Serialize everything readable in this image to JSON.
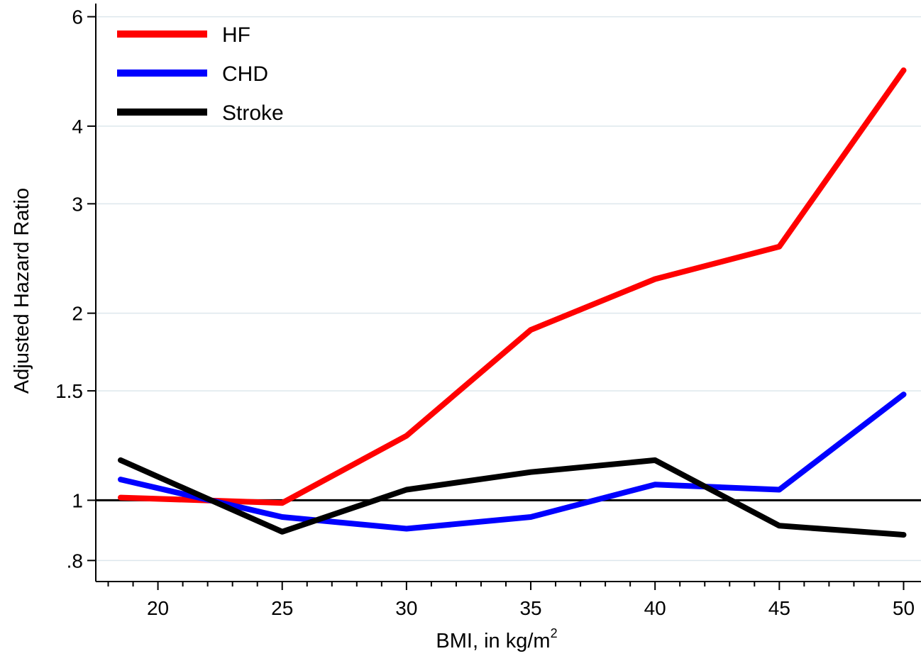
{
  "chart_data": {
    "type": "line",
    "title": "",
    "xlabel": "BMI, in kg/m",
    "xlabel_sup": "2",
    "ylabel": "Adjusted Hazard Ratio",
    "xlim": [
      17.5,
      50.7
    ],
    "ylim": [
      0.74,
      6.3
    ],
    "y_scale": "log",
    "grid": "horizontal",
    "legend_position": "top-left",
    "x_ticks": [
      20,
      25,
      30,
      35,
      40,
      45,
      50
    ],
    "x_tick_labels": [
      "20",
      "25",
      "30",
      "35",
      "40",
      "45",
      "50"
    ],
    "y_ticks": [
      0.8,
      1,
      1.5,
      2,
      3,
      4,
      6
    ],
    "y_tick_labels": [
      ".8",
      "1",
      "1.5",
      "2",
      "3",
      "4",
      "6"
    ],
    "reference_line": 1,
    "series": [
      {
        "name": "HF",
        "color": "#ff0000",
        "x": [
          18.5,
          25,
          30,
          35,
          40,
          45,
          50
        ],
        "y": [
          1.01,
          0.99,
          1.27,
          1.88,
          2.27,
          2.56,
          4.92
        ]
      },
      {
        "name": "CHD",
        "color": "#0000ff",
        "x": [
          18.5,
          25,
          30,
          35,
          40,
          45,
          50
        ],
        "y": [
          1.08,
          0.94,
          0.9,
          0.94,
          1.06,
          1.04,
          1.48
        ]
      },
      {
        "name": "Stroke",
        "color": "#000000",
        "x": [
          18.5,
          25,
          30,
          35,
          40,
          45,
          50
        ],
        "y": [
          1.16,
          0.89,
          1.04,
          1.11,
          1.16,
          0.91,
          0.88
        ]
      }
    ]
  }
}
